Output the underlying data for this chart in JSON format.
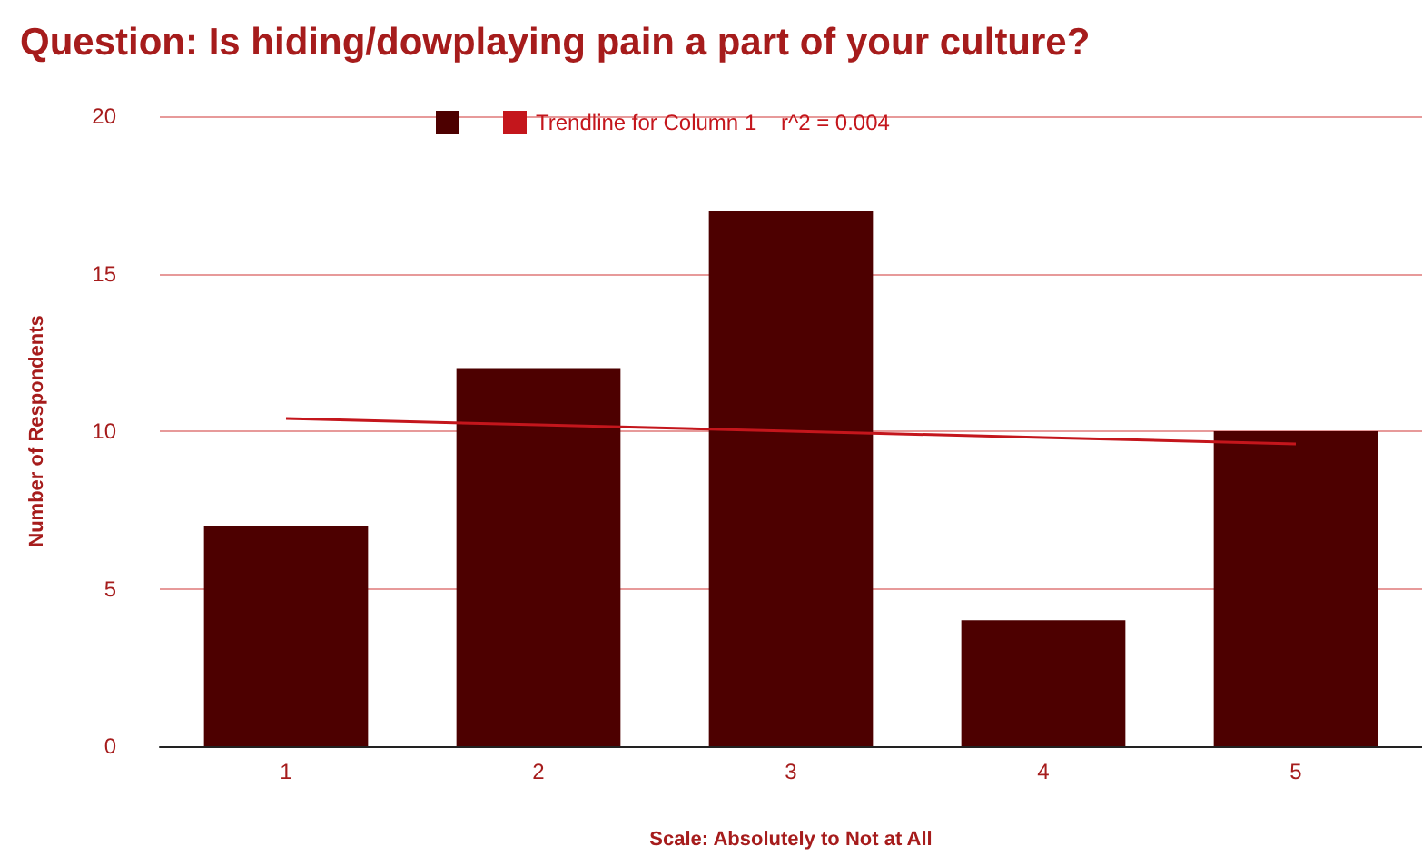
{
  "chart_data": {
    "type": "bar",
    "title": "Question: Is hiding/dowplaying pain a part of your culture?",
    "xlabel": "Scale: Absolutely to Not at All",
    "ylabel": "Number of Respondents",
    "categories": [
      "1",
      "2",
      "3",
      "4",
      "5"
    ],
    "series": [
      {
        "color": "#4d0000",
        "values": [
          7,
          12,
          17,
          4,
          10
        ]
      },
      {
        "type": "line",
        "name": "Trendline for Column 1    r^2 = 0.004",
        "color": "#c4161c",
        "values": [
          10.4,
          10.2,
          10,
          9.8,
          9.6
        ]
      }
    ],
    "ylim": [
      0,
      20
    ],
    "yticks": [
      0,
      5,
      10,
      15,
      20
    ],
    "grid": "y",
    "legend": "top",
    "marker": "none",
    "line_style": "solid"
  }
}
